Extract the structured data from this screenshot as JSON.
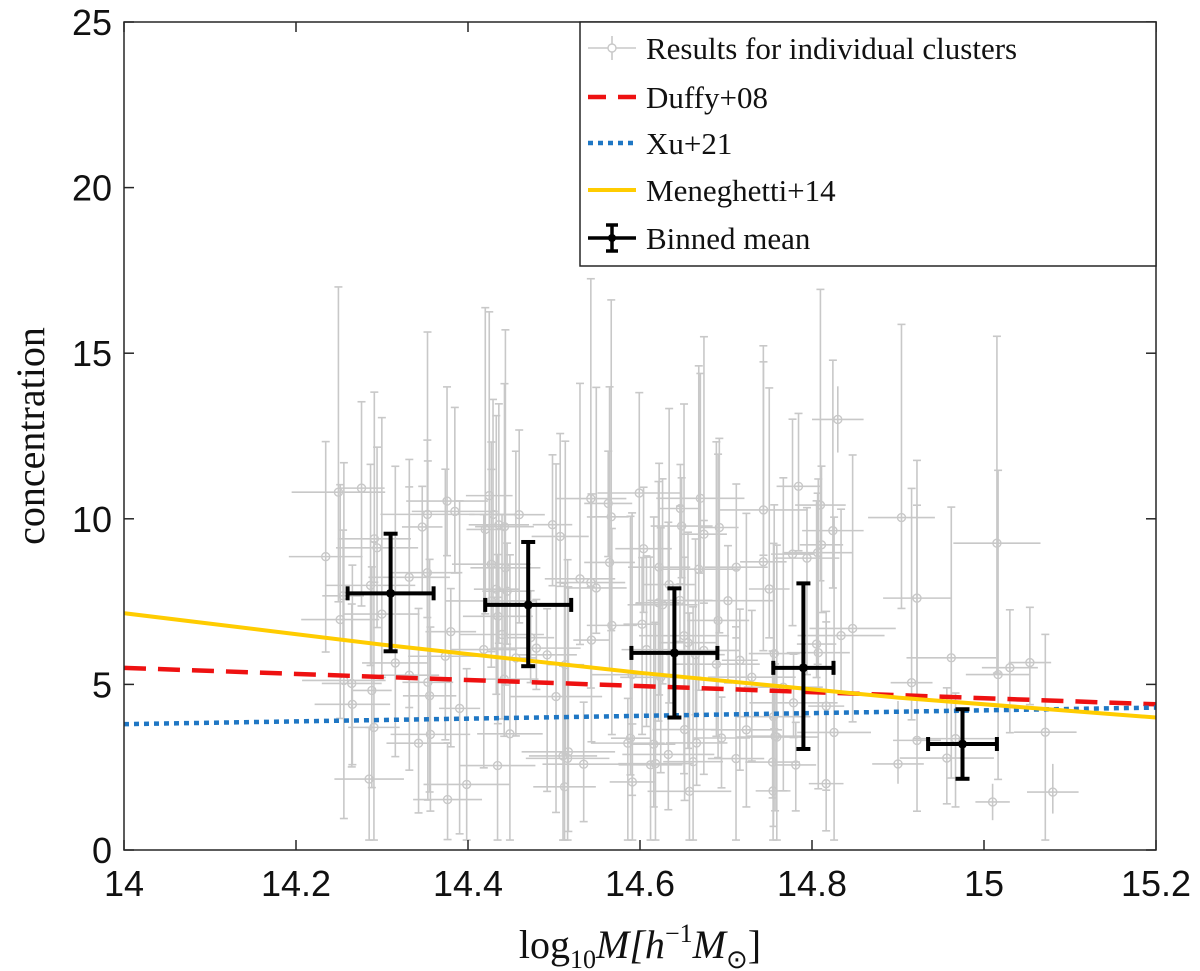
{
  "chart_data": {
    "type": "scatter",
    "xlabel_base": "log",
    "xlabel_sub": "10",
    "xlabel_tail": "M[h",
    "xlabel_sup": "−1",
    "xlabel_m": "M",
    "xlabel_msub": "⊙",
    "xlabel_close": "]",
    "ylabel": "concentration",
    "xlim": [
      14,
      15.2
    ],
    "ylim": [
      0,
      25
    ],
    "xticks": [
      14,
      14.2,
      14.4,
      14.6,
      14.8,
      15,
      15.2
    ],
    "xtick_labels": [
      "14",
      "14.2",
      "14.4",
      "14.6",
      "14.8",
      "15",
      "15.2"
    ],
    "yticks": [
      0,
      5,
      10,
      15,
      20,
      25
    ],
    "ytick_labels": [
      "0",
      "5",
      "10",
      "15",
      "20",
      "25"
    ],
    "grid": false,
    "legend_position": "top-right",
    "legend": [
      {
        "label": "Results for individual clusters",
        "style": "errorbar-circle",
        "color": "#c8c8c8"
      },
      {
        "label": "Duffy+08",
        "style": "dashed",
        "color": "#ee1111"
      },
      {
        "label": "Xu+21",
        "style": "dotted",
        "color": "#1f77c4"
      },
      {
        "label": "Meneghetti+14",
        "style": "solid",
        "color": "#ffcc00"
      },
      {
        "label": "Binned mean",
        "style": "errorbar",
        "color": "#000000"
      }
    ],
    "series": [
      {
        "name": "Duffy+08",
        "x": [
          14.0,
          15.2
        ],
        "y": [
          5.5,
          4.4
        ],
        "color": "#ee1111"
      },
      {
        "name": "Xu+21",
        "x": [
          14.0,
          15.2
        ],
        "y": [
          3.8,
          4.3
        ],
        "color": "#1f77c4"
      },
      {
        "name": "Meneghetti+14",
        "x": [
          14.0,
          14.3,
          14.6,
          14.9,
          15.2
        ],
        "y": [
          7.15,
          6.2,
          5.35,
          4.6,
          4.0
        ],
        "color": "#ffcc00"
      }
    ],
    "binned_mean": {
      "color": "#000000",
      "points": [
        {
          "x": 14.31,
          "y": 7.75,
          "xerr": 0.05,
          "ylo": 6.0,
          "yhi": 9.55
        },
        {
          "x": 14.47,
          "y": 7.4,
          "xerr": 0.05,
          "ylo": 5.55,
          "yhi": 9.3
        },
        {
          "x": 14.64,
          "y": 5.95,
          "xerr": 0.05,
          "ylo": 4.0,
          "yhi": 7.9
        },
        {
          "x": 14.79,
          "y": 5.5,
          "xerr": 0.035,
          "ylo": 3.05,
          "yhi": 8.05
        },
        {
          "x": 14.975,
          "y": 3.2,
          "xerr": 0.04,
          "ylo": 2.15,
          "yhi": 4.25
        }
      ]
    },
    "individual_clusters": {
      "color": "#c8c8c8",
      "count": 150,
      "x_range": [
        14.22,
        15.08
      ],
      "y_range": [
        1.4,
        13.1
      ],
      "note": "dense cloud of grey points with large vertical error bars, mostly between log M 14.25 and 14.85"
    }
  }
}
